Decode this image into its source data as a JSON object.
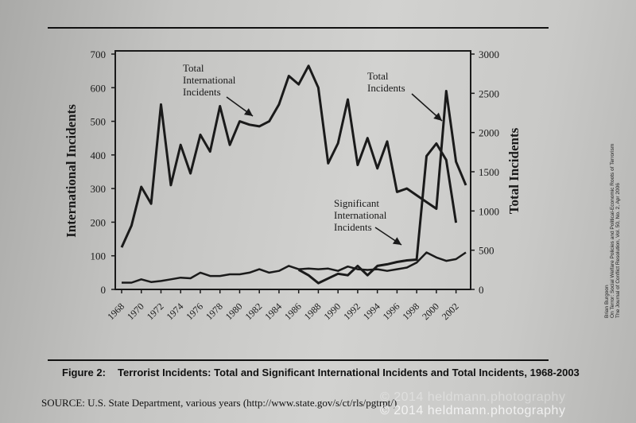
{
  "caption": {
    "label": "Figure 2:",
    "text": "Terrorist Incidents: Total and Significant International Incidents and Total Incidents, 1968-2003"
  },
  "source": "SOURCE: U.S. State Department, various years (http://www.state.gov/s/ct/rls/pgtrpt/)",
  "side_citation": [
    "Brian Burgoon",
    "On Terror: Social Welfare Policies and Political-Economic Roots of Terrorism",
    "The Journal of Conflict Resolution, Vol. 50, No. 2, Apr 2006"
  ],
  "watermark": "© 2014 heldmann.photography",
  "colors": {
    "ink": "#1a1a1a",
    "paper": "#c8c8c6"
  },
  "chart_data": {
    "type": "line",
    "ylabel": "International Incidents",
    "y2label": "Total Incidents",
    "ylim": [
      0,
      700
    ],
    "y2lim": [
      0,
      3000
    ],
    "yticks": [
      0,
      100,
      200,
      300,
      400,
      500,
      600,
      700
    ],
    "y2ticks": [
      0,
      500,
      1000,
      1500,
      2000,
      2500,
      3000
    ],
    "xlim": [
      1968,
      2003
    ],
    "xticks": [
      1968,
      1970,
      1972,
      1974,
      1976,
      1978,
      1980,
      1982,
      1984,
      1986,
      1988,
      1990,
      1992,
      1994,
      1996,
      1998,
      2000,
      2002
    ],
    "series": [
      {
        "name": "Total International Incidents",
        "axis": "left",
        "x": [
          1968,
          1969,
          1970,
          1971,
          1972,
          1973,
          1974,
          1975,
          1976,
          1977,
          1978,
          1979,
          1980,
          1981,
          1982,
          1983,
          1984,
          1985,
          1986,
          1987,
          1988,
          1989,
          1990,
          1991,
          1992,
          1993,
          1994,
          1995,
          1996,
          1997,
          1998,
          1999,
          2000,
          2001,
          2002,
          2003
        ],
        "values": [
          125,
          190,
          305,
          255,
          550,
          310,
          430,
          345,
          460,
          410,
          545,
          430,
          500,
          490,
          485,
          500,
          550,
          635,
          610,
          665,
          600,
          375,
          435,
          565,
          370,
          450,
          360,
          440,
          290,
          300,
          280,
          260,
          240,
          590,
          380,
          310
        ]
      },
      {
        "name": "Significant International Incidents",
        "axis": "left",
        "x": [
          1968,
          1969,
          1970,
          1971,
          1972,
          1973,
          1974,
          1975,
          1976,
          1977,
          1978,
          1979,
          1980,
          1981,
          1982,
          1983,
          1984,
          1985,
          1986,
          1987,
          1988,
          1989,
          1990,
          1991,
          1992,
          1993,
          1994,
          1995,
          1996,
          1997,
          1998,
          1999,
          2000,
          2001,
          2002,
          2003
        ],
        "values": [
          20,
          20,
          30,
          22,
          25,
          30,
          35,
          33,
          50,
          40,
          40,
          45,
          45,
          50,
          60,
          50,
          55,
          70,
          60,
          62,
          60,
          62,
          55,
          68,
          60,
          58,
          60,
          55,
          60,
          65,
          80,
          110,
          95,
          85,
          90,
          110
        ]
      },
      {
        "name": "Total Incidents",
        "axis": "right",
        "x": [
          1986,
          1987,
          1988,
          1989,
          1990,
          1991,
          1992,
          1993,
          1994,
          1995,
          1996,
          1997,
          1998,
          1999,
          2000,
          2001,
          2002
        ],
        "values": [
          250,
          180,
          80,
          140,
          200,
          180,
          300,
          180,
          300,
          320,
          350,
          370,
          380,
          1700,
          1860,
          1650,
          850
        ]
      }
    ],
    "annotations": [
      {
        "text": [
          "Total",
          "International",
          "Incidents"
        ],
        "series": "Total International Incidents"
      },
      {
        "text": [
          "Total",
          "Incidents"
        ],
        "series": "Total Incidents"
      },
      {
        "text": [
          "Significant",
          "International",
          "Incidents"
        ],
        "series": "Significant International Incidents"
      }
    ]
  }
}
